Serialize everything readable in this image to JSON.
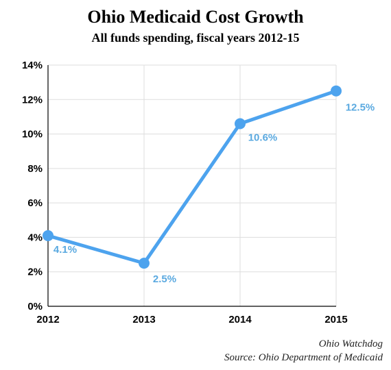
{
  "title": "Ohio Medicaid Cost Growth",
  "subtitle": "All funds spending, fiscal years 2012-15",
  "footer": {
    "credit": "Ohio Watchdog",
    "source": "Source: Ohio Department of Medicaid"
  },
  "colors": {
    "line": "#4da3ee",
    "label": "#5aa9e0",
    "axis": "#000000",
    "grid": "#dddddd"
  },
  "chart_data": {
    "type": "line",
    "categories": [
      "2012",
      "2013",
      "2014",
      "2015"
    ],
    "series": [
      {
        "values": [
          4.1,
          2.5,
          10.6,
          12.5
        ],
        "labels": [
          "4.1%",
          "2.5%",
          "10.6%",
          "12.5%"
        ]
      }
    ],
    "yticks": [
      "0%",
      "2%",
      "4%",
      "6%",
      "8%",
      "10%",
      "12%",
      "14%"
    ],
    "ylim": [
      0,
      14
    ],
    "xlabel": "",
    "ylabel": "",
    "grid": true,
    "legend": "none"
  }
}
